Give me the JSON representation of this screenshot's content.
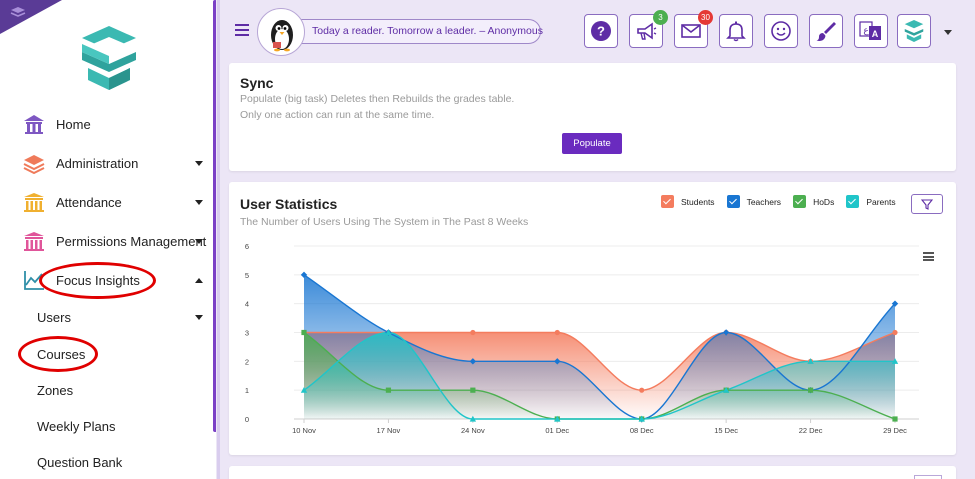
{
  "sidebar": {
    "items": [
      {
        "label": "Home",
        "icon": "home-building-icon",
        "color": "#7e57c2",
        "caret": ""
      },
      {
        "label": "Administration",
        "icon": "layers-icon",
        "color": "#ef7a5a",
        "caret": "down"
      },
      {
        "label": "Attendance",
        "icon": "columns-building-icon",
        "color": "#f0b030",
        "caret": "down"
      },
      {
        "label": "Permissions Management",
        "icon": "bank-icon",
        "color": "#e0559a",
        "caret": "down"
      },
      {
        "label": "Focus Insights",
        "icon": "line-chart-icon",
        "color": "#2f8fa8",
        "caret": "up"
      }
    ],
    "subitems": [
      {
        "label": "Users",
        "caret": "down"
      },
      {
        "label": "Courses",
        "caret": ""
      },
      {
        "label": "Zones",
        "caret": ""
      },
      {
        "label": "Weekly Plans",
        "caret": ""
      },
      {
        "label": "Question Bank",
        "caret": ""
      }
    ]
  },
  "header": {
    "quote": "Today a reader. Tomorrow a leader. – Anonymous",
    "buttons": [
      {
        "name": "help-button",
        "icon": "question-icon",
        "badge": ""
      },
      {
        "name": "announcements-button",
        "icon": "megaphone-icon",
        "badge": "3"
      },
      {
        "name": "messages-button",
        "icon": "envelope-icon",
        "badge": "30"
      },
      {
        "name": "notifications-button",
        "icon": "bell-icon",
        "badge": ""
      },
      {
        "name": "feedback-button",
        "icon": "smiley-icon",
        "badge": ""
      },
      {
        "name": "theme-button",
        "icon": "paintbrush-icon",
        "badge": ""
      },
      {
        "name": "language-button",
        "icon": "translate-icon",
        "badge": ""
      },
      {
        "name": "app-switcher-button",
        "icon": "app-logo-icon",
        "badge": ""
      }
    ]
  },
  "sync": {
    "title": "Sync",
    "desc1": "Populate (big task) Deletes then Rebuilds the grades table.",
    "desc2": "Only one action can run at the same time.",
    "button": "Populate"
  },
  "stats": {
    "title": "User Statistics",
    "subtitle": "The Number of Users Using The System in The Past 8 Weeks"
  },
  "colors": {
    "accent": "#6a2bbf",
    "students": "#f47c5e",
    "teachers": "#1976d2",
    "hods": "#4caf50",
    "parents": "#20c5c9"
  },
  "chart_data": {
    "type": "area",
    "categories": [
      "10 Nov",
      "17 Nov",
      "24 Nov",
      "01 Dec",
      "08 Dec",
      "15 Dec",
      "22 Dec",
      "29 Dec"
    ],
    "ylim": [
      0,
      6
    ],
    "yticks": [
      0,
      1,
      2,
      3,
      4,
      5,
      6
    ],
    "legend_position": "top-right",
    "grid": true,
    "series": [
      {
        "name": "Students",
        "values": [
          3,
          3,
          3,
          3,
          1,
          3,
          2,
          3
        ],
        "color": "#f47c5e",
        "marker": "circle"
      },
      {
        "name": "Teachers",
        "values": [
          5,
          3,
          2,
          2,
          0,
          3,
          1,
          4
        ],
        "color": "#1976d2",
        "marker": "diamond"
      },
      {
        "name": "HoDs",
        "values": [
          3,
          1,
          1,
          0,
          0,
          1,
          1,
          0
        ],
        "color": "#4caf50",
        "marker": "square"
      },
      {
        "name": "Parents",
        "values": [
          1,
          3,
          0,
          0,
          0,
          1,
          2,
          2
        ],
        "color": "#20c5c9",
        "marker": "triangle"
      }
    ]
  }
}
